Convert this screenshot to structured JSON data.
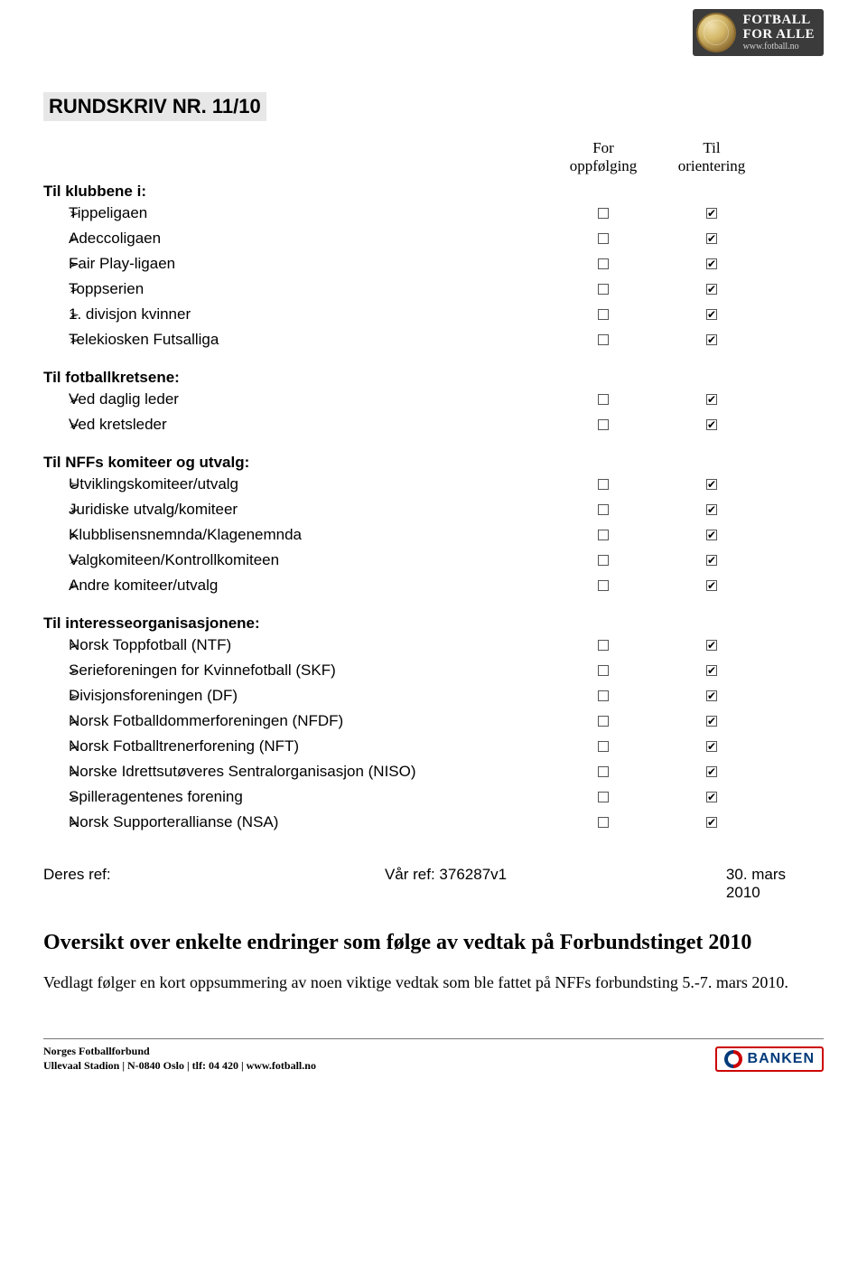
{
  "badge": {
    "line1": "FOTBALL",
    "line2": "FOR ALLE",
    "url": "www.fotball.no"
  },
  "title": "RUNDSKRIV NR. 11/10",
  "col_headers": {
    "followup": "For oppfølging",
    "info": "Til orientering"
  },
  "sections": [
    {
      "heading": "Til klubbene i:",
      "items": [
        {
          "label": "Tippeligaen",
          "followup": false,
          "info": true
        },
        {
          "label": "Adeccoligaen",
          "followup": false,
          "info": true
        },
        {
          "label": "Fair Play-ligaen",
          "followup": false,
          "info": true
        },
        {
          "label": "Toppserien",
          "followup": false,
          "info": true
        },
        {
          "label": "1. divisjon kvinner",
          "followup": false,
          "info": true
        },
        {
          "label": "Telekiosken Futsalliga",
          "followup": false,
          "info": true
        }
      ]
    },
    {
      "heading": "Til fotballkretsene:",
      "items": [
        {
          "label": "Ved daglig leder",
          "followup": false,
          "info": true
        },
        {
          "label": "Ved kretsleder",
          "followup": false,
          "info": true
        }
      ]
    },
    {
      "heading": "Til NFFs komiteer og utvalg:",
      "items": [
        {
          "label": "Utviklingskomiteer/utvalg",
          "followup": false,
          "info": true
        },
        {
          "label": "Juridiske utvalg/komiteer",
          "followup": false,
          "info": true
        },
        {
          "label": "Klubblisensnemnda/Klagenemnda",
          "followup": false,
          "info": true
        },
        {
          "label": "Valgkomiteen/Kontrollkomiteen",
          "followup": false,
          "info": true
        },
        {
          "label": "Andre komiteer/utvalg",
          "followup": false,
          "info": true
        }
      ]
    },
    {
      "heading": "Til interesseorganisasjonene:",
      "items": [
        {
          "label": "Norsk Toppfotball (NTF)",
          "followup": false,
          "info": true
        },
        {
          "label": "Serieforeningen for Kvinnefotball (SKF)",
          "followup": false,
          "info": true
        },
        {
          "label": "Divisjonsforeningen (DF)",
          "followup": false,
          "info": true
        },
        {
          "label": "Norsk Fotballdommerforeningen (NFDF)",
          "followup": false,
          "info": true
        },
        {
          "label": "Norsk Fotballtrenerforening (NFT)",
          "followup": false,
          "info": true
        },
        {
          "label": "Norske Idrettsutøveres Sentralorganisasjon (NISO)",
          "followup": false,
          "info": true
        },
        {
          "label": "Spilleragentenes forening",
          "followup": false,
          "info": true
        },
        {
          "label": "Norsk Supporterallianse (NSA)",
          "followup": false,
          "info": true
        }
      ]
    }
  ],
  "refs": {
    "left": "Deres ref:",
    "mid": "Vår ref: 376287v1",
    "right": "30. mars 2010"
  },
  "doc": {
    "heading": "Oversikt over enkelte endringer som følge av vedtak på Forbundstinget 2010",
    "para": "Vedlagt følger en kort oppsummering av noen viktige vedtak som ble fattet på NFFs forbundsting 5.-7. mars 2010."
  },
  "footer": {
    "line1": "Norges Fotballforbund",
    "line2": "Ullevaal Stadion | N-0840 Oslo | tlf: 04 420 | www.fotball.no",
    "bank": "BANKEN"
  },
  "colors": {
    "highlight_bg": "#e7e7e7",
    "badge_bg": "#3b3b3b",
    "bank_red": "#c00",
    "bank_blue": "#003a7a"
  }
}
